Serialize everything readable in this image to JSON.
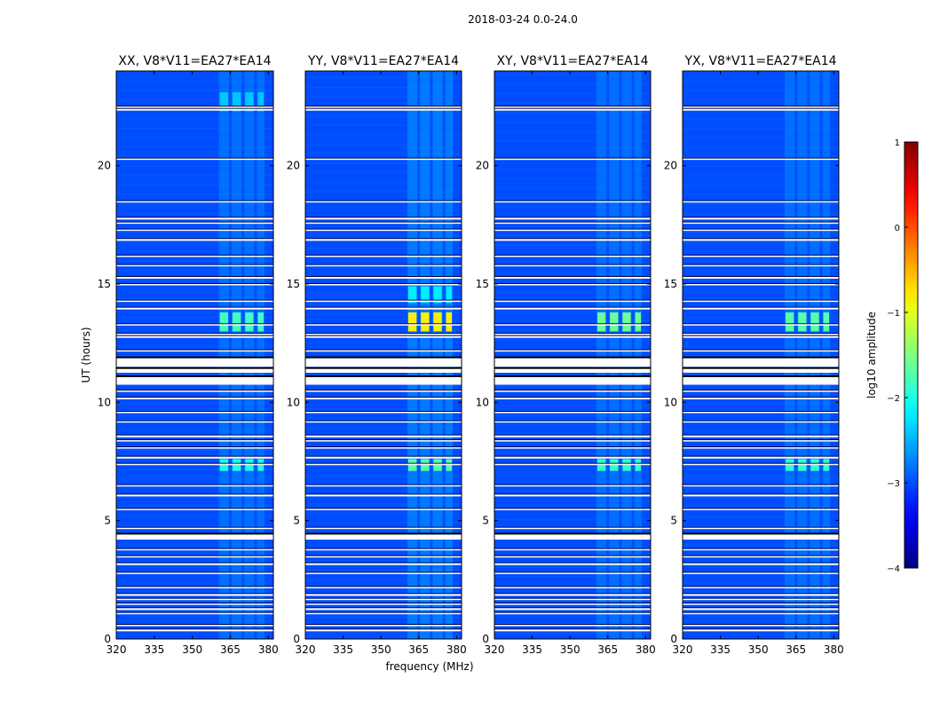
{
  "suptitle": "2018-03-24 0.0-24.0",
  "chart_data": {
    "type": "heatmap",
    "shared": {
      "xlabel": "frequency (MHz)",
      "ylabel": "UT (hours)",
      "xlim": [
        320,
        382
      ],
      "ylim": [
        0,
        24
      ],
      "x_ticks": [
        320,
        335,
        350,
        365,
        380
      ],
      "y_ticks": [
        0,
        5,
        10,
        15,
        20
      ],
      "background_log10_amplitude": -3.0,
      "rfi_channel_ranges_mhz": [
        [
          360.5,
          364.5
        ],
        [
          365.5,
          369.5
        ],
        [
          370.5,
          374.5
        ],
        [
          375.5,
          378.5
        ]
      ],
      "flagged_ut_hours": [
        0.4,
        0.6,
        1.1,
        1.3,
        1.5,
        1.7,
        1.9,
        2.2,
        2.8,
        3.2,
        3.5,
        3.8,
        4.3,
        4.7,
        5.5,
        6.1,
        6.5,
        7.4,
        7.7,
        8.1,
        8.4,
        8.6,
        9.2,
        9.6,
        10.2,
        10.5,
        10.8,
        11.4,
        11.6,
        12.2,
        12.8,
        12.9,
        13.3,
        14.0,
        14.3,
        15.0,
        15.3,
        15.8,
        16.2,
        16.9,
        17.3,
        17.6,
        17.8,
        18.5,
        20.3,
        22.4,
        22.5
      ],
      "flagged_ut_blocks": [
        [
          4.2,
          4.45
        ],
        [
          10.75,
          11.1
        ],
        [
          11.25,
          11.45
        ],
        [
          11.5,
          11.9
        ]
      ]
    },
    "panels": [
      {
        "title": "XX, V8*V11=EA27*EA14",
        "bright_blocks": [
          {
            "ut": [
              13.0,
              13.8
            ],
            "log10_amplitude": -1.8
          },
          {
            "ut": [
              7.1,
              7.6
            ],
            "log10_amplitude": -2.0
          },
          {
            "ut": [
              22.3,
              23.1
            ],
            "log10_amplitude": -2.4
          },
          {
            "ut": [
              0,
              24
            ],
            "log10_amplitude": -2.7
          }
        ]
      },
      {
        "title": "YY, V8*V11=EA27*EA14",
        "bright_blocks": [
          {
            "ut": [
              13.0,
              13.8
            ],
            "log10_amplitude": -0.8
          },
          {
            "ut": [
              7.1,
              7.6
            ],
            "log10_amplitude": -1.7
          },
          {
            "ut": [
              14.2,
              14.9
            ],
            "log10_amplitude": -2.2
          },
          {
            "ut": [
              0,
              24
            ],
            "log10_amplitude": -2.6
          }
        ]
      },
      {
        "title": "XY, V8*V11=EA27*EA14",
        "bright_blocks": [
          {
            "ut": [
              13.0,
              13.8
            ],
            "log10_amplitude": -1.6
          },
          {
            "ut": [
              7.1,
              7.6
            ],
            "log10_amplitude": -1.9
          },
          {
            "ut": [
              0,
              24
            ],
            "log10_amplitude": -2.7
          }
        ]
      },
      {
        "title": "YX, V8*V11=EA27*EA14",
        "bright_blocks": [
          {
            "ut": [
              13.0,
              13.8
            ],
            "log10_amplitude": -1.7
          },
          {
            "ut": [
              7.1,
              7.6
            ],
            "log10_amplitude": -1.9
          },
          {
            "ut": [
              0,
              24
            ],
            "log10_amplitude": -2.7
          }
        ]
      }
    ],
    "colorbar": {
      "label": "log10 amplitude",
      "range": [
        -4,
        1
      ],
      "ticks": [
        -4,
        -3,
        -2,
        -1,
        0,
        1
      ],
      "tick_labels": [
        "−4",
        "−3",
        "−2",
        "−1",
        "0",
        "1"
      ],
      "colormap": "jet"
    }
  }
}
